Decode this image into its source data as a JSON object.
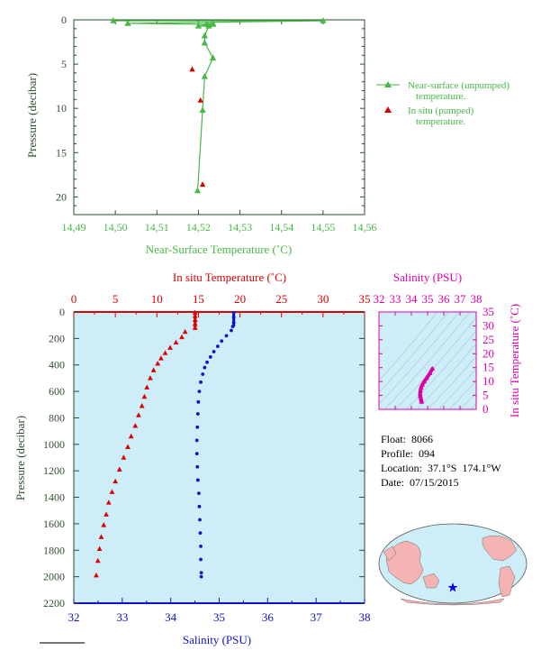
{
  "colors": {
    "near_surface": "#44b944",
    "insitu": "#dd0000",
    "salinity": "#1010cc",
    "pressure_axis": "#2e4e2e",
    "tsdiagram": "#dd00aa",
    "panel_bg": "#cdeef8",
    "land": "#f4b4b4",
    "ocean": "#cdeef8"
  },
  "info": {
    "float_label": "Float:",
    "float": "8066",
    "profile_label": "Profile:",
    "profile": "094",
    "location_label": "Location:",
    "location": "37.1°S  174.1°W",
    "date_label": "Date:",
    "date": "07/15/2015"
  },
  "chart_data": [
    {
      "id": "near_surface",
      "type": "line",
      "xlabel": "Near-Surface Temperature (˚C)",
      "ylabel": "Pressure (decibar)",
      "xlim": [
        14.49,
        14.56
      ],
      "ylim": [
        22,
        0
      ],
      "xticks": [
        "14.49",
        "14.50",
        "14.51",
        "14.52",
        "14.53",
        "14.54",
        "14.55",
        "14.56"
      ],
      "yticks": [
        "0",
        "5",
        "10",
        "15",
        "20"
      ],
      "legend_position": "right",
      "series": [
        {
          "name": "Near-surface (unpumped) temperature.",
          "marker": "triangle",
          "points": [
            [
              14.4995,
              0.1
            ],
            [
              14.55,
              0.1
            ],
            [
              14.503,
              0.4
            ],
            [
              14.522,
              0.5
            ],
            [
              14.5235,
              0.4
            ],
            [
              14.5235,
              0.5
            ],
            [
              14.52,
              0.7
            ],
            [
              14.5225,
              0.7
            ],
            [
              14.5215,
              1.8
            ],
            [
              14.5215,
              2.6
            ],
            [
              14.5235,
              4.3
            ],
            [
              14.5215,
              6.4
            ],
            [
              14.521,
              10.2
            ],
            [
              14.5198,
              19.3
            ]
          ]
        },
        {
          "name": "In situ (pumped) temperature.",
          "marker": "triangle",
          "points": [
            [
              14.5185,
              5.6
            ],
            [
              14.5205,
              9.1
            ],
            [
              14.521,
              18.6
            ]
          ]
        }
      ]
    },
    {
      "id": "profile",
      "type": "scatter",
      "x_bottom_label": "Salinity (PSU)",
      "x_top_label": "In situ Temperature (˚C)",
      "ylabel": "Pressure (decibar)",
      "salinity_lim": [
        32,
        38
      ],
      "temperature_lim": [
        0,
        35
      ],
      "ylim": [
        2200,
        0
      ],
      "salinity_ticks": [
        "32",
        "33",
        "34",
        "35",
        "36",
        "37",
        "38"
      ],
      "temperature_ticks": [
        "0",
        "5",
        "10",
        "15",
        "20",
        "25",
        "30",
        "35"
      ],
      "pressure_ticks": [
        "0",
        "200",
        "400",
        "600",
        "800",
        "1000",
        "1200",
        "1400",
        "1600",
        "1800",
        "2000",
        "2200"
      ],
      "series": [
        {
          "name": "In situ Temperature",
          "marker": "triangle",
          "points": [
            [
              14.6,
              5
            ],
            [
              14.6,
              30
            ],
            [
              14.6,
              60
            ],
            [
              14.6,
              90
            ],
            [
              14.6,
              120
            ],
            [
              13.4,
              150
            ],
            [
              13.0,
              190
            ],
            [
              12.3,
              230
            ],
            [
              11.6,
              270
            ],
            [
              11.0,
              310
            ],
            [
              10.5,
              350
            ],
            [
              10.1,
              390
            ],
            [
              9.6,
              440
            ],
            [
              9.2,
              500
            ],
            [
              8.8,
              570
            ],
            [
              8.5,
              640
            ],
            [
              8.2,
              710
            ],
            [
              7.8,
              780
            ],
            [
              7.4,
              860
            ],
            [
              6.9,
              940
            ],
            [
              6.5,
              1020
            ],
            [
              6.0,
              1100
            ],
            [
              5.5,
              1190
            ],
            [
              5.0,
              1280
            ],
            [
              4.6,
              1360
            ],
            [
              4.2,
              1440
            ],
            [
              3.9,
              1530
            ],
            [
              3.6,
              1610
            ],
            [
              3.3,
              1700
            ],
            [
              3.1,
              1790
            ],
            [
              2.9,
              1880
            ],
            [
              2.7,
              1990
            ]
          ]
        },
        {
          "name": "Salinity",
          "marker": "dot",
          "points": [
            [
              35.3,
              5
            ],
            [
              35.3,
              40
            ],
            [
              35.3,
              80
            ],
            [
              35.28,
              110
            ],
            [
              35.25,
              140
            ],
            [
              35.15,
              180
            ],
            [
              35.05,
              220
            ],
            [
              34.97,
              260
            ],
            [
              34.89,
              300
            ],
            [
              34.82,
              340
            ],
            [
              34.75,
              380
            ],
            [
              34.7,
              420
            ],
            [
              34.66,
              470
            ],
            [
              34.62,
              530
            ],
            [
              34.59,
              600
            ],
            [
              34.57,
              680
            ],
            [
              34.56,
              770
            ],
            [
              34.55,
              870
            ],
            [
              34.54,
              970
            ],
            [
              34.54,
              1070
            ],
            [
              34.55,
              1170
            ],
            [
              34.56,
              1270
            ],
            [
              34.58,
              1370
            ],
            [
              34.59,
              1470
            ],
            [
              34.6,
              1570
            ],
            [
              34.61,
              1670
            ],
            [
              34.62,
              1770
            ],
            [
              34.62,
              1870
            ],
            [
              34.63,
              1970
            ],
            [
              34.63,
              2000
            ]
          ]
        }
      ]
    },
    {
      "id": "ts_diagram",
      "type": "scatter",
      "xlabel": "Salinity (PSU)",
      "ylabel": "In situ Temperature (˚C)",
      "xlim": [
        32,
        38
      ],
      "ylim": [
        0,
        35
      ],
      "xticks": [
        "32",
        "33",
        "34",
        "35",
        "36",
        "37",
        "38"
      ],
      "yticks": [
        "0",
        "5",
        "10",
        "15",
        "20",
        "25",
        "30",
        "35"
      ],
      "series": [
        {
          "name": "T-S",
          "points": [
            [
              35.3,
              14.6
            ],
            [
              35.15,
              13.0
            ],
            [
              34.95,
              11.3
            ],
            [
              34.8,
              10.0
            ],
            [
              34.68,
              8.9
            ],
            [
              34.6,
              7.8
            ],
            [
              34.56,
              6.8
            ],
            [
              34.54,
              5.7
            ],
            [
              34.55,
              4.8
            ],
            [
              34.58,
              4.0
            ],
            [
              34.61,
              3.3
            ],
            [
              34.63,
              2.7
            ]
          ]
        }
      ]
    }
  ],
  "map": {
    "marker": "float location star"
  }
}
